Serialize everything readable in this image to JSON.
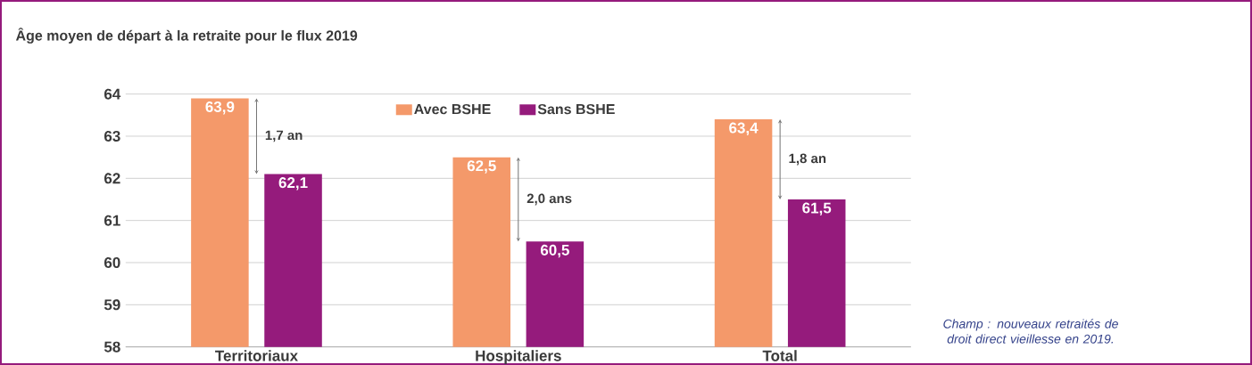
{
  "chart_data": {
    "type": "bar",
    "title": "Âge moyen de départ à la retraite pour le flux 2019",
    "categories": [
      "Territoriaux",
      "Hospitaliers",
      "Total"
    ],
    "series": [
      {
        "name": "Avec BSHE",
        "color": "#f4996a",
        "values": [
          63.9,
          62.5,
          63.4
        ],
        "value_labels": [
          "63,9",
          "62,5",
          "63,4"
        ]
      },
      {
        "name": "Sans BSHE",
        "color": "#951b7c",
        "values": [
          62.1,
          60.5,
          61.5
        ],
        "value_labels": [
          "62,1",
          "60,5",
          "61,5"
        ]
      }
    ],
    "ylim": [
      58,
      64
    ],
    "yticks": [
      58,
      59,
      60,
      61,
      62,
      63,
      64
    ],
    "grid": "y",
    "legend": "top",
    "annotations": [
      "1,7 an",
      "2,0 ans",
      "1,8 an",
      "Champ : nouveaux retraités de droit direct vieillesse en 2019."
    ]
  }
}
